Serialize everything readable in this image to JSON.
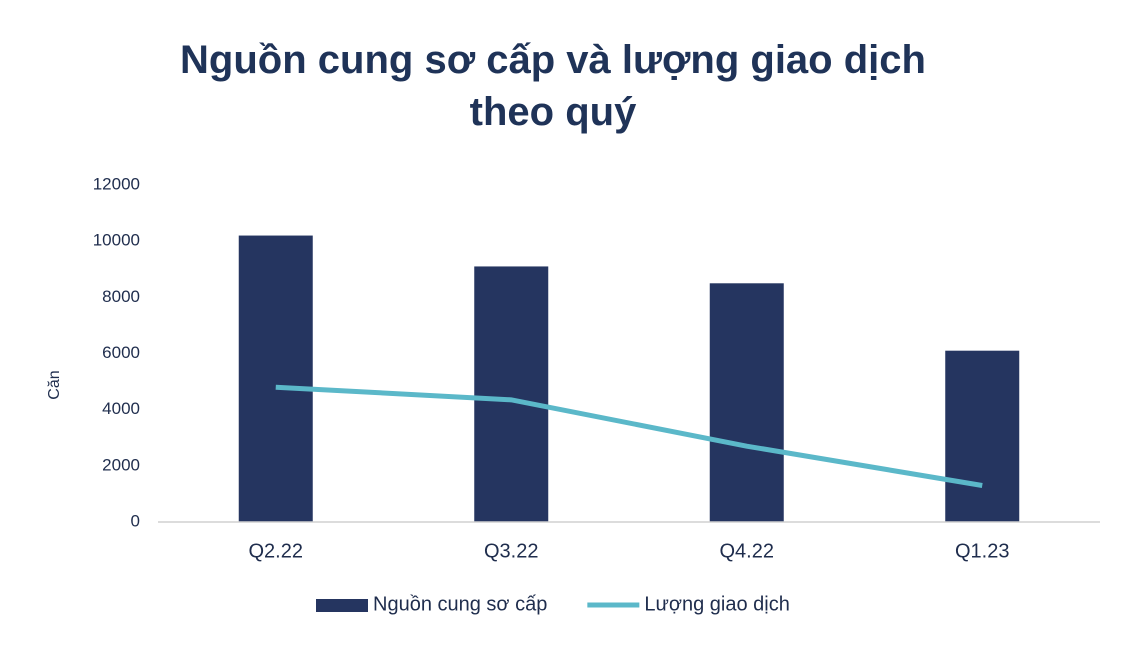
{
  "chart_data": {
    "type": "combo",
    "title": "Nguồn cung sơ cấp và lượng giao dịch theo quý",
    "y_label": "Căn",
    "categories": [
      "Q2.22",
      "Q3.22",
      "Q4.22",
      "Q1.23"
    ],
    "series": [
      {
        "name": "Nguồn cung sơ cấp",
        "type": "bar",
        "color": "#253560",
        "values": [
          10200,
          9100,
          8500,
          6100
        ]
      },
      {
        "name": "Lượng giao dịch",
        "type": "line",
        "color": "#5bb8c9",
        "values": [
          4800,
          4350,
          2700,
          1300
        ]
      }
    ],
    "ylim": [
      0,
      12000
    ],
    "yticks": [
      0,
      2000,
      4000,
      6000,
      8000,
      10000,
      12000
    ],
    "grid": false,
    "legend": "bottom"
  }
}
